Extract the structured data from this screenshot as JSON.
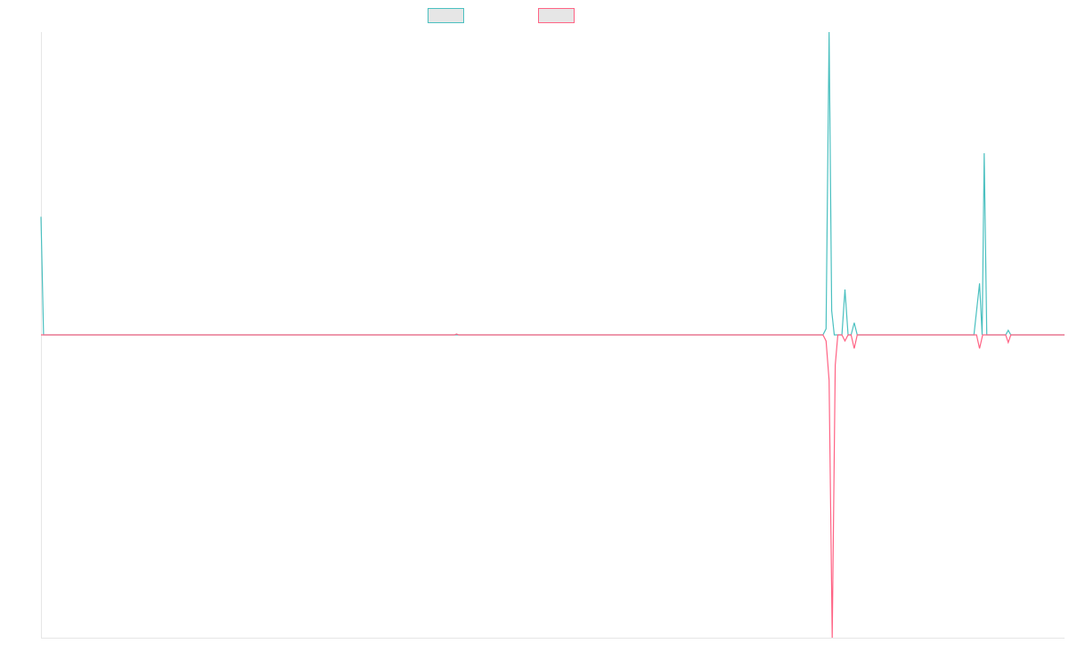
{
  "chart_data": {
    "type": "line",
    "title": "",
    "xlabel": "",
    "ylabel": "",
    "grid": false,
    "legend_position": "top-center",
    "x_range": [
      0,
      200
    ],
    "ylim": [
      -1.0,
      1.0
    ],
    "colors": {
      "series_a": "#4bc0c0",
      "series_b": "#ff6384",
      "legend_fill": "#e6e6e6",
      "axis": "#e6e6e6"
    },
    "series": [
      {
        "key": "a",
        "name": "",
        "points": [
          [
            0,
            0.39
          ],
          [
            0.5,
            0
          ],
          [
            80.8,
            0
          ],
          [
            81.2,
            0
          ],
          [
            152.8,
            0
          ],
          [
            153.4,
            0.02
          ],
          [
            154.0,
            1.0
          ],
          [
            154.5,
            0.08
          ],
          [
            155.0,
            0
          ],
          [
            156.5,
            0
          ],
          [
            157.1,
            0.15
          ],
          [
            157.7,
            0
          ],
          [
            158.3,
            0
          ],
          [
            158.9,
            0.04
          ],
          [
            159.5,
            0
          ],
          [
            182.3,
            0
          ],
          [
            183.4,
            0.17
          ],
          [
            183.9,
            0
          ],
          [
            184.3,
            0.6
          ],
          [
            184.8,
            0
          ],
          [
            188.5,
            0
          ],
          [
            189.0,
            0.015
          ],
          [
            189.5,
            0
          ],
          [
            200,
            0
          ]
        ]
      },
      {
        "key": "b",
        "name": "",
        "points": [
          [
            0,
            0
          ],
          [
            80.8,
            0
          ],
          [
            81.2,
            0.003
          ],
          [
            81.6,
            0
          ],
          [
            152.8,
            0
          ],
          [
            153.4,
            -0.02
          ],
          [
            154.0,
            -0.15
          ],
          [
            154.6,
            -1.0
          ],
          [
            155.2,
            -0.1
          ],
          [
            155.7,
            0
          ],
          [
            156.5,
            0
          ],
          [
            157.1,
            -0.02
          ],
          [
            157.7,
            0
          ],
          [
            158.3,
            0
          ],
          [
            158.9,
            -0.045
          ],
          [
            159.5,
            0
          ],
          [
            182.8,
            0
          ],
          [
            183.4,
            -0.045
          ],
          [
            184.0,
            0
          ],
          [
            188.5,
            0
          ],
          [
            189.0,
            -0.025
          ],
          [
            189.5,
            0
          ],
          [
            200,
            0
          ]
        ]
      }
    ]
  }
}
